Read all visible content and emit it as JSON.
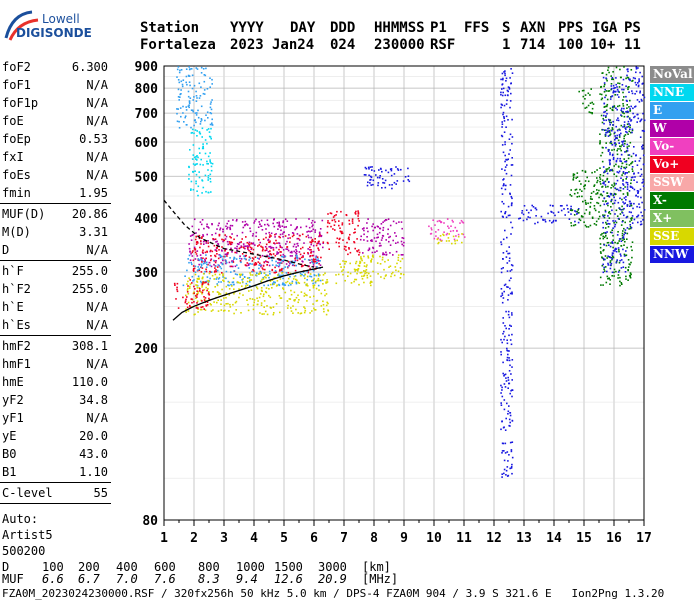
{
  "logo": {
    "line1": "Lowell",
    "line2": "DIGISONDE"
  },
  "header": {
    "labels": [
      "Station",
      "YYYY",
      "DAY",
      "DDD",
      "HHMMSS",
      "P1",
      "FFS",
      "S",
      "AXN",
      "PPS",
      "IGA",
      "PS"
    ],
    "values": [
      "Fortaleza",
      "2023",
      "Jan24",
      "024",
      "230000",
      "RSF",
      "1",
      "714",
      "100",
      "10+",
      "11"
    ]
  },
  "params_group1": [
    {
      "name": "foF2",
      "value": "6.300"
    },
    {
      "name": "foF1",
      "value": "N/A"
    },
    {
      "name": "foF1p",
      "value": "N/A"
    },
    {
      "name": "foE",
      "value": "N/A"
    },
    {
      "name": "foEp",
      "value": "0.53"
    },
    {
      "name": "fxI",
      "value": "N/A"
    },
    {
      "name": "foEs",
      "value": "N/A"
    },
    {
      "name": "fmin",
      "value": "1.95"
    }
  ],
  "params_group2": [
    {
      "name": "MUF(D)",
      "value": "20.86"
    },
    {
      "name": "M(D)",
      "value": "3.31"
    },
    {
      "name": "D",
      "value": "N/A"
    }
  ],
  "params_group3": [
    {
      "name": "h`F",
      "value": "255.0"
    },
    {
      "name": "h`F2",
      "value": "255.0"
    },
    {
      "name": "h`E",
      "value": "N/A"
    },
    {
      "name": "h`Es",
      "value": "N/A"
    }
  ],
  "params_group4": [
    {
      "name": "hmF2",
      "value": "308.1"
    },
    {
      "name": "hmF1",
      "value": "N/A"
    },
    {
      "name": "hmE",
      "value": "110.0"
    },
    {
      "name": "yF2",
      "value": "34.8"
    },
    {
      "name": "yF1",
      "value": "N/A"
    },
    {
      "name": "yE",
      "value": "20.0"
    },
    {
      "name": "B0",
      "value": "43.0"
    },
    {
      "name": "B1",
      "value": "1.10"
    }
  ],
  "clevel": {
    "name": "C-level",
    "value": "55"
  },
  "auto": {
    "line1": "Auto:",
    "line2": "Artist5",
    "line3": "500200"
  },
  "legend": [
    {
      "label": "NoVal",
      "color": "#8c8c8c"
    },
    {
      "label": "NNE",
      "color": "#00d8f0"
    },
    {
      "label": "E",
      "color": "#32a0f0"
    },
    {
      "label": "W",
      "color": "#b000a8"
    },
    {
      "label": "Vo-",
      "color": "#f040c0"
    },
    {
      "label": "Vo+",
      "color": "#f00020"
    },
    {
      "label": "SSW",
      "color": "#f8a8a8"
    },
    {
      "label": "X-",
      "color": "#007a00"
    },
    {
      "label": "X+",
      "color": "#80c060"
    },
    {
      "label": "SSE",
      "color": "#d8d800"
    },
    {
      "label": "NNW",
      "color": "#1818e0"
    }
  ],
  "bottom": {
    "d_label": "D",
    "d_values": [
      "100",
      "200",
      "400",
      "600",
      "800",
      "1000",
      "1500",
      "3000",
      "[km]"
    ],
    "muf_label": "MUF",
    "muf_values": [
      "6.6",
      "6.7",
      "7.0",
      "7.6",
      "8.3",
      "9.4",
      "12.6",
      "20.9",
      "[MHz]"
    ],
    "footer": "FZA0M_2023024230000.RSF / 320fx256h 50 kHz 5.0 km / DPS-4 FZA0M 904 / 3.9 S 321.6 E   Ion2Png 1.3.20"
  },
  "chart_data": {
    "type": "scatter",
    "x_ticks": [
      "1",
      "2",
      "3",
      "4",
      "5",
      "6",
      "7",
      "8",
      "9",
      "10",
      "11",
      "12",
      "13",
      "14",
      "15",
      "16",
      "17"
    ],
    "y_ticks": [
      "80",
      "200",
      "300",
      "400",
      "500",
      "600",
      "700",
      "800",
      "900"
    ],
    "xlim": [
      1,
      17
    ],
    "ylim": [
      80,
      900
    ],
    "y_scale": "log",
    "grid": true,
    "profile_curve": {
      "x": [
        1.3,
        1.6,
        2.0,
        2.5,
        3.0,
        3.5,
        4.0,
        4.5,
        5.0,
        5.5,
        6.0,
        6.3
      ],
      "y": [
        232,
        242,
        250,
        258,
        265,
        272,
        279,
        287,
        294,
        300,
        305,
        308
      ]
    },
    "trace_curve": {
      "x": [
        1.0,
        1.3,
        1.7,
        2.2,
        3.0,
        4.0,
        5.0,
        5.6,
        6.0
      ],
      "y": [
        440,
        415,
        385,
        360,
        340,
        330,
        320,
        312,
        308
      ]
    },
    "echo_regions": [
      {
        "x": [
          1.8,
          6.3
        ],
        "y": [
          310,
          400
        ],
        "color": "#b000a8"
      },
      {
        "x": [
          1.9,
          6.3
        ],
        "y": [
          300,
          370
        ],
        "color": "#f00020"
      },
      {
        "x": [
          1.6,
          6.2
        ],
        "y": [
          280,
          330
        ],
        "color": "#32a0f0"
      },
      {
        "x": [
          1.7,
          6.5
        ],
        "y": [
          240,
          300
        ],
        "color": "#d8d800"
      },
      {
        "x": [
          1.3,
          2.5
        ],
        "y": [
          245,
          290
        ],
        "color": "#f00020"
      },
      {
        "x": [
          6.4,
          7.5
        ],
        "y": [
          330,
          420
        ],
        "color": "#f00020"
      },
      {
        "x": [
          6.7,
          7.9
        ],
        "y": [
          280,
          320
        ],
        "color": "#d8d800"
      },
      {
        "x": [
          7.5,
          9.0
        ],
        "y": [
          330,
          400
        ],
        "color": "#b000a8"
      },
      {
        "x": [
          7.5,
          9.0
        ],
        "y": [
          290,
          330
        ],
        "color": "#d8d800"
      },
      {
        "x": [
          7.6,
          9.2
        ],
        "y": [
          470,
          530
        ],
        "color": "#1818e0"
      },
      {
        "x": [
          9.8,
          11.0
        ],
        "y": [
          355,
          400
        ],
        "color": "#f040c0"
      },
      {
        "x": [
          10.0,
          11.0
        ],
        "y": [
          350,
          370
        ],
        "color": "#d8d800"
      },
      {
        "x": [
          12.8,
          14.8
        ],
        "y": [
          390,
          430
        ],
        "color": "#1818e0"
      },
      {
        "x": [
          14.5,
          15.5
        ],
        "y": [
          380,
          520
        ],
        "color": "#007a00"
      },
      {
        "x": [
          15.5,
          16.6
        ],
        "y": [
          280,
          900
        ],
        "color": "#007a00"
      },
      {
        "x": [
          15.6,
          16.4
        ],
        "y": [
          300,
          850
        ],
        "color": "#1818e0"
      },
      {
        "x": [
          16.4,
          17.0
        ],
        "y": [
          380,
          900
        ],
        "color": "#1818e0"
      },
      {
        "x": [
          1.4,
          2.6
        ],
        "y": [
          650,
          900
        ],
        "color": "#32a0f0"
      },
      {
        "x": [
          1.8,
          2.6
        ],
        "y": [
          450,
          650
        ],
        "color": "#00d8f0"
      },
      {
        "x": [
          12.2,
          12.6
        ],
        "y": [
          100,
          900
        ],
        "color": "#1818e0"
      },
      {
        "x": [
          14.8,
          15.3
        ],
        "y": [
          700,
          800
        ],
        "color": "#007a00"
      }
    ]
  }
}
